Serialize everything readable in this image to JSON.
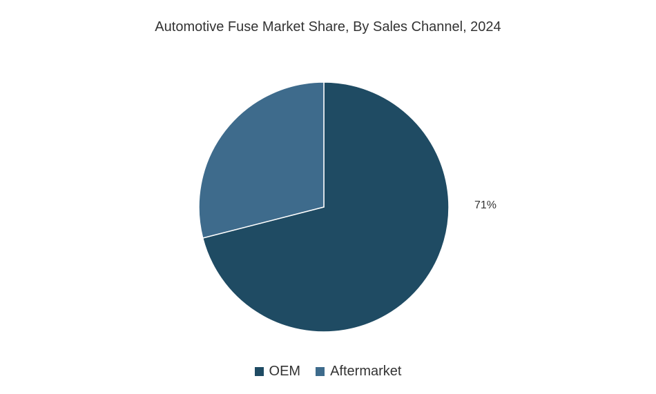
{
  "chart_data": {
    "type": "pie",
    "title": "Automotive Fuse Market Share, By Sales Channel, 2024",
    "categories": [
      "OEM",
      "Aftermarket"
    ],
    "values": [
      71,
      29
    ],
    "data_labels": [
      "71%",
      ""
    ],
    "colors": [
      "#1f4b63",
      "#3e6b8c"
    ],
    "legend_position": "bottom"
  }
}
